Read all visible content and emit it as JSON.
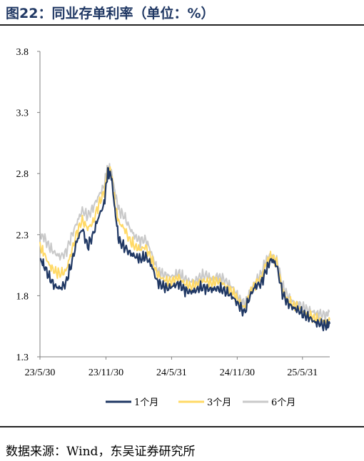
{
  "header": {
    "title": "图22：同业存单利率（单位：%）"
  },
  "footer": {
    "source": "数据来源：Wind，东吴证券研究所"
  },
  "chart_data": {
    "type": "line",
    "title": "图22：同业存单利率（单位：%）",
    "xlabel": "",
    "ylabel": "",
    "ylim": [
      1.3,
      3.8
    ],
    "yticks": [
      "3.8",
      "3.3",
      "2.8",
      "2.3",
      "1.8",
      "1.3"
    ],
    "xticks": [
      "23/5/30",
      "23/11/30",
      "24/5/31",
      "24/11/30",
      "25/5/31"
    ],
    "x_range": [
      "2023-05-30",
      "2025-08-15"
    ],
    "grid": false,
    "legend": "bottom",
    "series": [
      {
        "name": "1个月",
        "color": "#203864",
        "points": [
          [
            "2023-05-30",
            2.1
          ],
          [
            "2023-06-10",
            2.05
          ],
          [
            "2023-06-25",
            1.95
          ],
          [
            "2023-07-10",
            1.88
          ],
          [
            "2023-07-25",
            1.86
          ],
          [
            "2023-08-10",
            1.9
          ],
          [
            "2023-08-25",
            2.05
          ],
          [
            "2023-09-10",
            2.25
          ],
          [
            "2023-09-25",
            2.35
          ],
          [
            "2023-10-10",
            2.2
          ],
          [
            "2023-10-25",
            2.3
          ],
          [
            "2023-11-10",
            2.45
          ],
          [
            "2023-11-25",
            2.55
          ],
          [
            "2023-12-05",
            2.82
          ],
          [
            "2023-12-15",
            2.78
          ],
          [
            "2023-12-25",
            2.5
          ],
          [
            "2024-01-05",
            2.25
          ],
          [
            "2024-01-20",
            2.2
          ],
          [
            "2024-02-05",
            2.15
          ],
          [
            "2024-02-20",
            2.12
          ],
          [
            "2024-03-05",
            2.1
          ],
          [
            "2024-03-20",
            2.12
          ],
          [
            "2024-04-05",
            2.05
          ],
          [
            "2024-04-20",
            1.92
          ],
          [
            "2024-05-05",
            1.88
          ],
          [
            "2024-05-20",
            1.86
          ],
          [
            "2024-06-05",
            1.88
          ],
          [
            "2024-06-20",
            1.9
          ],
          [
            "2024-07-05",
            1.85
          ],
          [
            "2024-07-20",
            1.83
          ],
          [
            "2024-08-05",
            1.84
          ],
          [
            "2024-08-20",
            1.87
          ],
          [
            "2024-09-05",
            1.86
          ],
          [
            "2024-09-20",
            1.85
          ],
          [
            "2024-10-05",
            1.86
          ],
          [
            "2024-10-20",
            1.85
          ],
          [
            "2024-11-05",
            1.82
          ],
          [
            "2024-11-20",
            1.78
          ],
          [
            "2024-12-05",
            1.72
          ],
          [
            "2024-12-20",
            1.66
          ],
          [
            "2025-01-05",
            1.8
          ],
          [
            "2025-01-20",
            1.88
          ],
          [
            "2025-02-05",
            1.9
          ],
          [
            "2025-02-20",
            2.02
          ],
          [
            "2025-03-05",
            2.1
          ],
          [
            "2025-03-20",
            2.05
          ],
          [
            "2025-04-05",
            1.82
          ],
          [
            "2025-04-20",
            1.74
          ],
          [
            "2025-05-05",
            1.7
          ],
          [
            "2025-05-20",
            1.68
          ],
          [
            "2025-06-05",
            1.64
          ],
          [
            "2025-06-20",
            1.62
          ],
          [
            "2025-07-05",
            1.58
          ],
          [
            "2025-07-20",
            1.57
          ],
          [
            "2025-08-05",
            1.55
          ],
          [
            "2025-08-15",
            1.57
          ]
        ]
      },
      {
        "name": "3个月",
        "color": "#FFD966",
        "points": [
          [
            "2023-05-30",
            2.2
          ],
          [
            "2023-06-10",
            2.15
          ],
          [
            "2023-06-25",
            2.05
          ],
          [
            "2023-07-10",
            2.0
          ],
          [
            "2023-07-25",
            1.98
          ],
          [
            "2023-08-10",
            2.0
          ],
          [
            "2023-08-25",
            2.15
          ],
          [
            "2023-09-10",
            2.32
          ],
          [
            "2023-09-25",
            2.42
          ],
          [
            "2023-10-10",
            2.35
          ],
          [
            "2023-10-25",
            2.4
          ],
          [
            "2023-11-10",
            2.55
          ],
          [
            "2023-11-25",
            2.65
          ],
          [
            "2023-12-05",
            2.84
          ],
          [
            "2023-12-15",
            2.8
          ],
          [
            "2023-12-25",
            2.55
          ],
          [
            "2024-01-05",
            2.4
          ],
          [
            "2024-01-20",
            2.35
          ],
          [
            "2024-02-05",
            2.25
          ],
          [
            "2024-02-20",
            2.2
          ],
          [
            "2024-03-05",
            2.18
          ],
          [
            "2024-03-20",
            2.2
          ],
          [
            "2024-04-05",
            2.1
          ],
          [
            "2024-04-20",
            1.98
          ],
          [
            "2024-05-05",
            1.94
          ],
          [
            "2024-05-20",
            1.92
          ],
          [
            "2024-06-05",
            1.92
          ],
          [
            "2024-06-20",
            1.95
          ],
          [
            "2024-07-05",
            1.9
          ],
          [
            "2024-07-20",
            1.88
          ],
          [
            "2024-08-05",
            1.88
          ],
          [
            "2024-08-20",
            1.92
          ],
          [
            "2024-09-05",
            1.92
          ],
          [
            "2024-09-20",
            1.9
          ],
          [
            "2024-10-05",
            1.92
          ],
          [
            "2024-10-20",
            1.9
          ],
          [
            "2024-11-05",
            1.86
          ],
          [
            "2024-11-20",
            1.82
          ],
          [
            "2024-12-05",
            1.75
          ],
          [
            "2024-12-20",
            1.7
          ],
          [
            "2025-01-05",
            1.82
          ],
          [
            "2025-01-20",
            1.9
          ],
          [
            "2025-02-05",
            1.95
          ],
          [
            "2025-02-20",
            2.08
          ],
          [
            "2025-03-05",
            2.12
          ],
          [
            "2025-03-20",
            2.08
          ],
          [
            "2025-04-05",
            1.85
          ],
          [
            "2025-04-20",
            1.76
          ],
          [
            "2025-05-05",
            1.72
          ],
          [
            "2025-05-20",
            1.7
          ],
          [
            "2025-06-05",
            1.66
          ],
          [
            "2025-06-20",
            1.64
          ],
          [
            "2025-07-05",
            1.61
          ],
          [
            "2025-07-20",
            1.6
          ],
          [
            "2025-08-05",
            1.58
          ],
          [
            "2025-08-15",
            1.6
          ]
        ]
      },
      {
        "name": "6个月",
        "color": "#C9C9C9",
        "points": [
          [
            "2023-05-30",
            2.3
          ],
          [
            "2023-06-10",
            2.28
          ],
          [
            "2023-06-25",
            2.2
          ],
          [
            "2023-07-10",
            2.15
          ],
          [
            "2023-07-25",
            2.12
          ],
          [
            "2023-08-10",
            2.15
          ],
          [
            "2023-08-25",
            2.28
          ],
          [
            "2023-09-10",
            2.4
          ],
          [
            "2023-09-25",
            2.5
          ],
          [
            "2023-10-10",
            2.45
          ],
          [
            "2023-10-25",
            2.52
          ],
          [
            "2023-11-10",
            2.62
          ],
          [
            "2023-11-25",
            2.7
          ],
          [
            "2023-12-05",
            2.85
          ],
          [
            "2023-12-15",
            2.82
          ],
          [
            "2023-12-25",
            2.65
          ],
          [
            "2024-01-05",
            2.5
          ],
          [
            "2024-01-20",
            2.45
          ],
          [
            "2024-02-05",
            2.35
          ],
          [
            "2024-02-20",
            2.28
          ],
          [
            "2024-03-05",
            2.25
          ],
          [
            "2024-03-20",
            2.26
          ],
          [
            "2024-04-05",
            2.15
          ],
          [
            "2024-04-20",
            2.02
          ],
          [
            "2024-05-05",
            1.98
          ],
          [
            "2024-05-20",
            1.96
          ],
          [
            "2024-06-05",
            1.96
          ],
          [
            "2024-06-20",
            1.99
          ],
          [
            "2024-07-05",
            1.94
          ],
          [
            "2024-07-20",
            1.92
          ],
          [
            "2024-08-05",
            1.92
          ],
          [
            "2024-08-20",
            1.96
          ],
          [
            "2024-09-05",
            1.97
          ],
          [
            "2024-09-20",
            1.94
          ],
          [
            "2024-10-05",
            1.96
          ],
          [
            "2024-10-20",
            1.94
          ],
          [
            "2024-11-05",
            1.9
          ],
          [
            "2024-11-20",
            1.86
          ],
          [
            "2024-12-05",
            1.78
          ],
          [
            "2024-12-20",
            1.73
          ],
          [
            "2025-01-05",
            1.84
          ],
          [
            "2025-01-20",
            1.92
          ],
          [
            "2025-02-05",
            1.98
          ],
          [
            "2025-02-20",
            2.1
          ],
          [
            "2025-03-05",
            2.13
          ],
          [
            "2025-03-20",
            2.1
          ],
          [
            "2025-04-05",
            1.88
          ],
          [
            "2025-04-20",
            1.8
          ],
          [
            "2025-05-05",
            1.75
          ],
          [
            "2025-05-20",
            1.73
          ],
          [
            "2025-06-05",
            1.7
          ],
          [
            "2025-06-20",
            1.68
          ],
          [
            "2025-07-05",
            1.66
          ],
          [
            "2025-07-20",
            1.65
          ],
          [
            "2025-08-05",
            1.64
          ],
          [
            "2025-08-15",
            1.67
          ]
        ]
      }
    ]
  }
}
